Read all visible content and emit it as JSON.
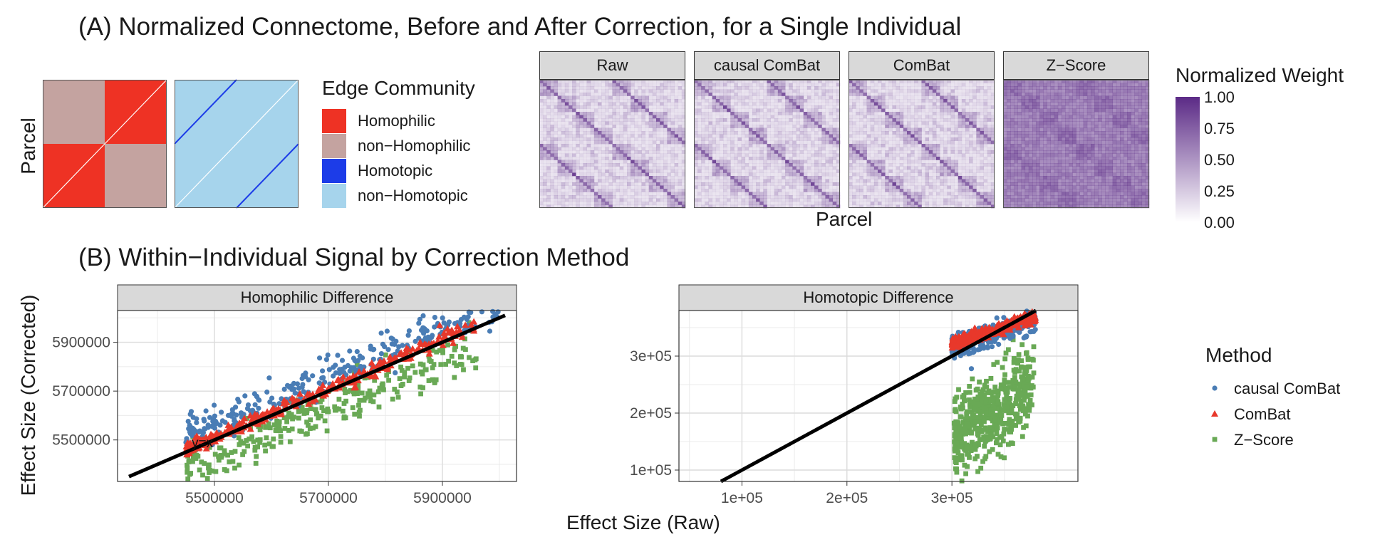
{
  "panel_a": {
    "title": "(A) Normalized Connectome, Before and After Correction, for a Single Individual",
    "parcel_ylabel": "Parcel",
    "parcel_xlabel": "Parcel",
    "edge_community_legend": {
      "title": "Edge Community",
      "items": [
        {
          "label": "Homophilic",
          "color": "#ee3224"
        },
        {
          "label": "non−Homophilic",
          "color": "#c4a3a0"
        },
        {
          "label": "Homotopic",
          "color": "#1c3ce8"
        },
        {
          "label": "non−Homotopic",
          "color": "#a6d4ec"
        }
      ]
    },
    "matrices": [
      "Raw",
      "causal ComBat",
      "ComBat",
      "Z−Score"
    ],
    "colorbar": {
      "title": "Normalized Weight",
      "ticks": [
        "1.00",
        "0.75",
        "0.50",
        "0.25",
        "0.00"
      ],
      "color_low": "#ffffff",
      "color_high": "#5b2a86"
    }
  },
  "panel_b": {
    "title": "(B) Within−Individual Signal by Correction Method",
    "xlabel": "Effect Size (Raw)",
    "ylabel": "Effect Size (Corrected)"
  },
  "chart_data": [
    {
      "type": "scatter",
      "title": "Homophilic Difference",
      "xlim": [
        5330000,
        6030000
      ],
      "ylim": [
        5330000,
        6030000
      ],
      "x_ticks": [
        "5500000",
        "5700000",
        "5900000"
      ],
      "x_tick_values": [
        5500000,
        5700000,
        5900000
      ],
      "y_ticks": [
        "5500000",
        "5700000",
        "5900000"
      ],
      "y_tick_values": [
        5500000,
        5700000,
        5900000
      ],
      "reference_line": {
        "label": "y=x",
        "from": [
          5350000,
          5350000
        ],
        "to": [
          6010000,
          6010000
        ]
      },
      "series": [
        {
          "name": "causal ComBat",
          "color": "#4a7db5",
          "marker": "circle",
          "x_range": [
            5450000,
            6000000
          ],
          "y_offset": 60000,
          "spread": 35000,
          "n": 300
        },
        {
          "name": "ComBat",
          "color": "#e8382b",
          "marker": "triangle",
          "x_range": [
            5450000,
            5960000
          ],
          "y_offset": 10000,
          "spread": 15000,
          "n": 300
        },
        {
          "name": "Z−Score",
          "color": "#69a955",
          "marker": "square",
          "x_range": [
            5450000,
            5960000
          ],
          "y_offset": -70000,
          "spread": 45000,
          "n": 300
        }
      ]
    },
    {
      "type": "scatter",
      "title": "Homotopic Difference",
      "xlim": [
        40000,
        420000
      ],
      "ylim": [
        80000,
        380000
      ],
      "x_ticks": [
        "1e+05",
        "2e+05",
        "3e+05"
      ],
      "x_tick_values": [
        100000,
        200000,
        300000
      ],
      "y_ticks": [
        "1e+05",
        "2e+05",
        "3e+05"
      ],
      "y_tick_values": [
        100000,
        200000,
        300000
      ],
      "reference_line": {
        "from": [
          80000,
          80000
        ],
        "to": [
          380000,
          380000
        ]
      },
      "series": [
        {
          "name": "causal ComBat",
          "color": "#4a7db5",
          "marker": "circle",
          "x_range": [
            300000,
            380000
          ],
          "y_center": [
            315000,
            362000
          ],
          "spread": 10000,
          "n": 300
        },
        {
          "name": "ComBat",
          "color": "#e8382b",
          "marker": "triangle",
          "x_range": [
            300000,
            380000
          ],
          "y_center": [
            322000,
            370000
          ],
          "spread": 5000,
          "n": 300
        },
        {
          "name": "Z−Score",
          "color": "#69a955",
          "marker": "square",
          "x_range": [
            302000,
            378000
          ],
          "y_center": [
            160000,
            250000
          ],
          "spread": 35000,
          "n": 500
        }
      ]
    }
  ],
  "method_legend": {
    "title": "Method",
    "items": [
      {
        "label": "causal ComBat",
        "color": "#4a7db5",
        "marker": "circle"
      },
      {
        "label": "ComBat",
        "color": "#e8382b",
        "marker": "triangle"
      },
      {
        "label": "Z−Score",
        "color": "#69a955",
        "marker": "square"
      }
    ]
  }
}
